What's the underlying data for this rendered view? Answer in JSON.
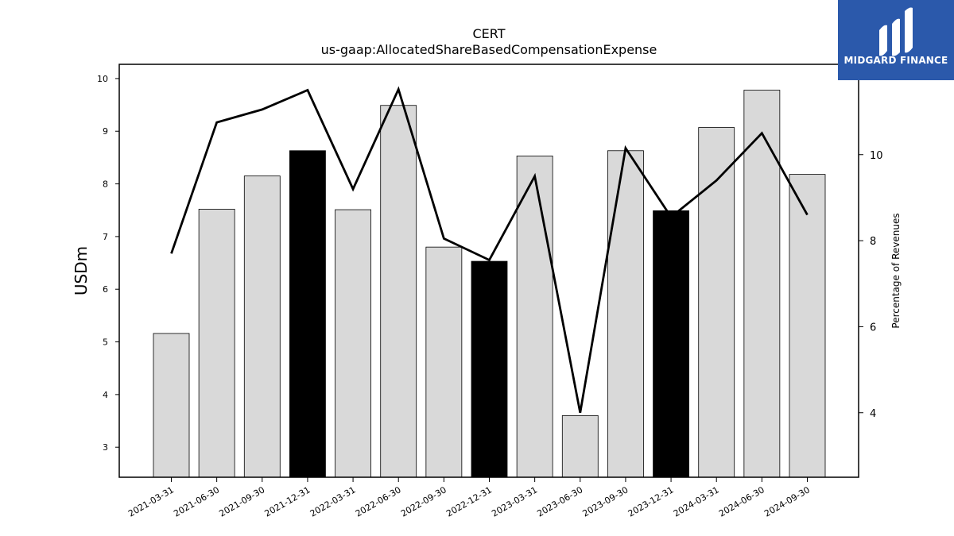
{
  "chart_data": {
    "type": "bar",
    "title": "CERT",
    "subtitle": "us-gaap:AllocatedShareBasedCompensationExpense",
    "ylabel": "USDm",
    "y2label": "Percentage of Revenues",
    "categories": [
      "2021-03-31",
      "2021-06-30",
      "2021-09-30",
      "2021-12-31",
      "2022-03-31",
      "2022-06-30",
      "2022-09-30",
      "2022-12-31",
      "2023-03-31",
      "2023-06-30",
      "2023-09-30",
      "2023-12-31",
      "2024-03-31",
      "2024-06-30",
      "2024-09-30"
    ],
    "series": [
      {
        "type": "bar",
        "axis": "left",
        "values": [
          5.16,
          7.52,
          8.15,
          8.63,
          7.51,
          9.49,
          6.8,
          6.53,
          8.53,
          3.6,
          8.63,
          7.49,
          9.07,
          9.78,
          8.18
        ],
        "highlight_indices": [
          3,
          7,
          11
        ],
        "bar_color": "#d9d9d9",
        "highlight_color": "#000000"
      },
      {
        "type": "line",
        "axis": "right",
        "values": [
          7.7,
          10.75,
          11.05,
          11.5,
          9.2,
          11.52,
          8.05,
          7.55,
          9.5,
          4.0,
          10.15,
          8.55,
          9.4,
          10.5,
          8.6
        ],
        "line_color": "#000000"
      }
    ],
    "ylim": [
      2.43,
      10.27
    ],
    "y2lim": [
      2.5,
      12.1
    ],
    "yticks": [
      3,
      4,
      5,
      6,
      7,
      8,
      9,
      10
    ],
    "y2ticks": [
      4,
      6,
      8,
      10
    ],
    "grid": false,
    "legend": "none"
  },
  "logo": {
    "text": "MIDGARD FINANCE",
    "color": "#2b59ab"
  }
}
